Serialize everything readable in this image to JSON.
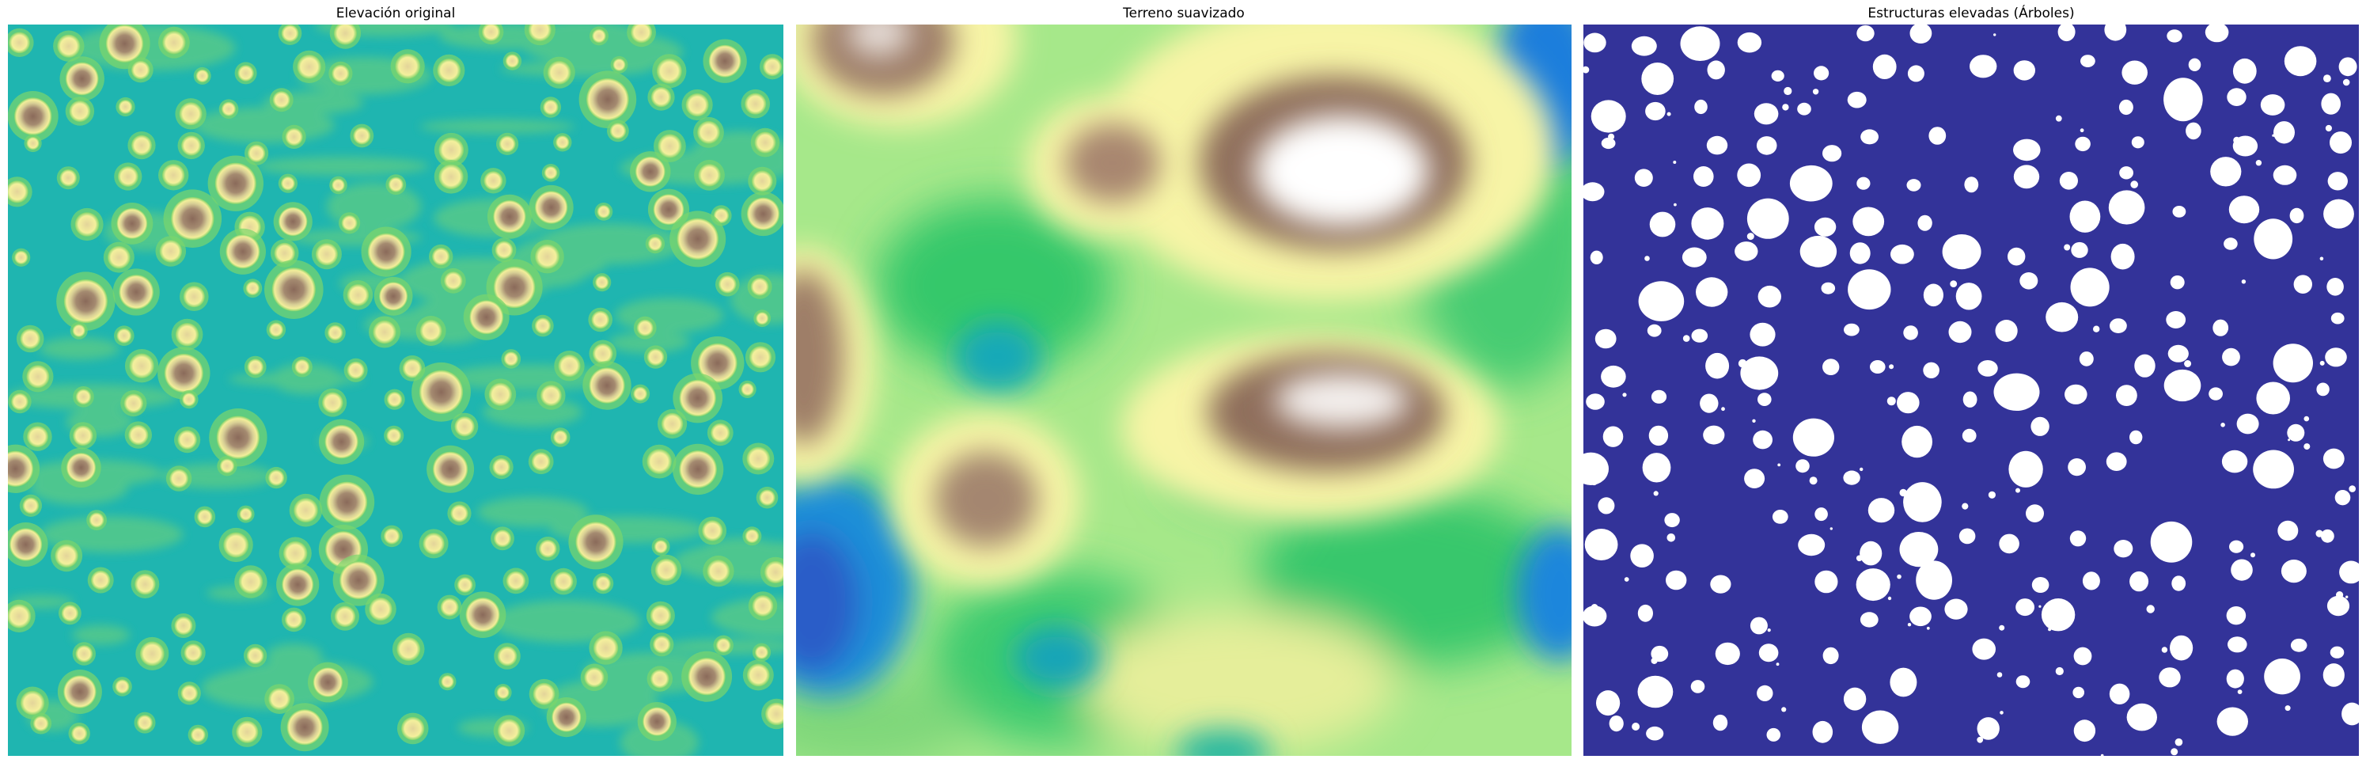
{
  "figure": {
    "panels": [
      {
        "title": "Elevación original",
        "colormap": "terrain",
        "background_color": "#1fb5b0"
      },
      {
        "title": "Terreno suavizado",
        "colormap": "terrain",
        "background_color": "#a6e88a"
      },
      {
        "title": "Estructuras elevadas (Árboles)",
        "colormap": "binary-mask",
        "background_color": "#333399",
        "foreground_color": "#ffffff"
      }
    ]
  }
}
